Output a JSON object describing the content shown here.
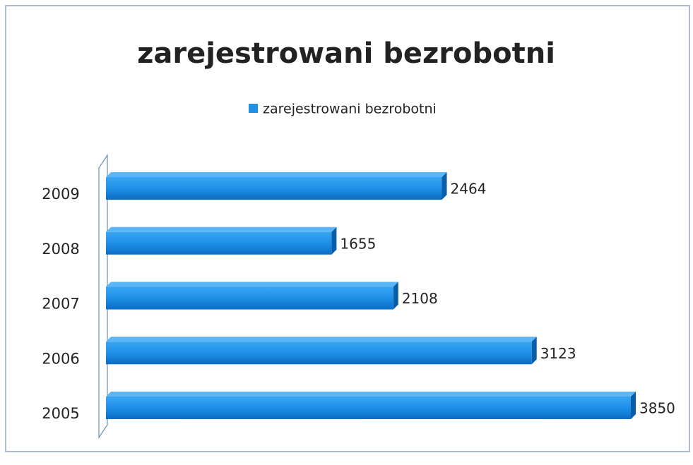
{
  "chart_data": {
    "type": "bar",
    "orientation": "horizontal",
    "title": "zarejestrowani bezrobotni",
    "categories": [
      "2005",
      "2006",
      "2007",
      "2008",
      "2009"
    ],
    "series": [
      {
        "name": "zarejestrowani bezrobotni",
        "color": "#1e90e8",
        "values": [
          3850,
          3123,
          2108,
          1655,
          2464
        ]
      }
    ],
    "legend": "top"
  }
}
